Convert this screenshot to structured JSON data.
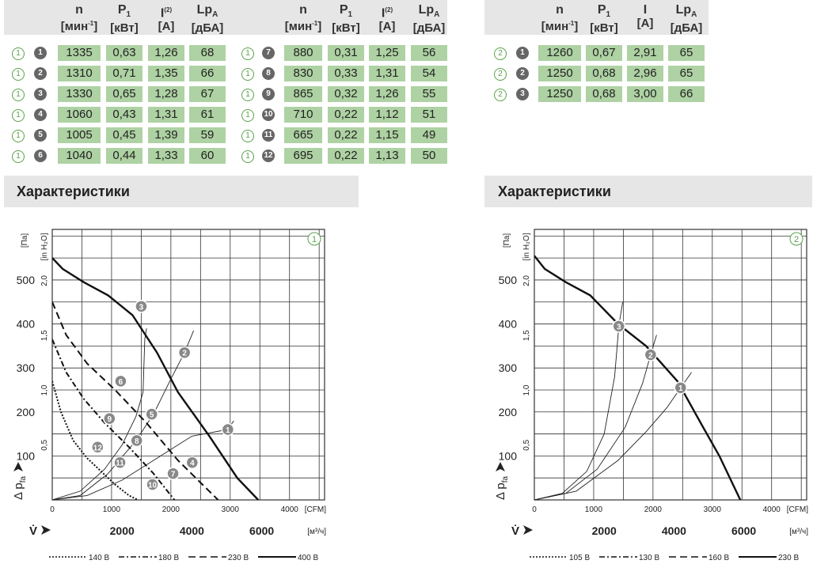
{
  "tables": [
    {
      "curve_marker": "1",
      "headers": {
        "n": {
          "sym": "n",
          "unit": "[мин",
          "unit_sup": "-1",
          "unit_tail": "]"
        },
        "p": {
          "sym": "P",
          "sub": "1",
          "unit": "[кВт]"
        },
        "i": {
          "sym": "I",
          "sup": "(2)",
          "unit": "[A]"
        },
        "lp": {
          "sym": "Lp",
          "sub": "A",
          "unit": "[дБА]"
        }
      },
      "rows": [
        {
          "op": "1",
          "n": "1335",
          "p": "0,63",
          "i": "1,26",
          "lp": "68"
        },
        {
          "op": "2",
          "n": "1310",
          "p": "0,71",
          "i": "1,35",
          "lp": "66"
        },
        {
          "op": "3",
          "n": "1330",
          "p": "0,65",
          "i": "1,28",
          "lp": "67"
        },
        {
          "op": "4",
          "n": "1060",
          "p": "0,43",
          "i": "1,31",
          "lp": "61"
        },
        {
          "op": "5",
          "n": "1005",
          "p": "0,45",
          "i": "1,39",
          "lp": "59"
        },
        {
          "op": "6",
          "n": "1040",
          "p": "0,44",
          "i": "1,33",
          "lp": "60"
        }
      ]
    },
    {
      "curve_marker": "1",
      "headers": {
        "n": {
          "sym": "n",
          "unit": "[мин",
          "unit_sup": "-1",
          "unit_tail": "]"
        },
        "p": {
          "sym": "P",
          "sub": "1",
          "unit": "[кВт]"
        },
        "i": {
          "sym": "I",
          "sup": "(2)",
          "unit": "[A]"
        },
        "lp": {
          "sym": "Lp",
          "sub": "A",
          "unit": "[дБА]"
        }
      },
      "rows": [
        {
          "op": "7",
          "n": "880",
          "p": "0,31",
          "i": "1,25",
          "lp": "56"
        },
        {
          "op": "8",
          "n": "830",
          "p": "0,33",
          "i": "1,31",
          "lp": "54"
        },
        {
          "op": "9",
          "n": "865",
          "p": "0,32",
          "i": "1,26",
          "lp": "55"
        },
        {
          "op": "10",
          "n": "710",
          "p": "0,22",
          "i": "1,12",
          "lp": "51"
        },
        {
          "op": "11",
          "n": "665",
          "p": "0,22",
          "i": "1,15",
          "lp": "49"
        },
        {
          "op": "12",
          "n": "695",
          "p": "0,22",
          "i": "1,13",
          "lp": "50"
        }
      ]
    },
    {
      "curve_marker": "2",
      "headers": {
        "n": {
          "sym": "n",
          "unit": "[мин",
          "unit_sup": "-1",
          "unit_tail": "]"
        },
        "p": {
          "sym": "P",
          "sub": "1",
          "unit": "[кВт]"
        },
        "i": {
          "sym": "I",
          "sup": "",
          "unit": "[A]"
        },
        "lp": {
          "sym": "Lp",
          "sub": "A",
          "unit": "[дБА]"
        }
      },
      "rows": [
        {
          "op": "1",
          "n": "1260",
          "p": "0,67",
          "i": "2,91",
          "lp": "65"
        },
        {
          "op": "2",
          "n": "1250",
          "p": "0,68",
          "i": "2,96",
          "lp": "65"
        },
        {
          "op": "3",
          "n": "1250",
          "p": "0,68",
          "i": "3,00",
          "lp": "66"
        }
      ]
    }
  ],
  "section_titles": [
    "Характеристики",
    "Характеристики"
  ],
  "colors": {
    "cell_green": "#aed2a3",
    "marker_green": "#5aa24a",
    "header_grey": "#e6e6e6",
    "op_grey": "#666666"
  },
  "chart_data": [
    {
      "type": "line",
      "marker": "1",
      "x_unit_m3h": "[м³/ч]",
      "x_unit_cfm": "[CFM]",
      "y_unit_pa": "[Па]",
      "y_unit_inh2o": "[in H₂O]",
      "ylabel": "Δ p",
      "ylabel_sub": "fa",
      "xlabel": "V̇",
      "xlim_m3h": [
        0,
        7800
      ],
      "ylim_pa": [
        0,
        615
      ],
      "x_ticks_m3h": [
        0,
        2000,
        4000,
        6000
      ],
      "x_ticks_cfm": [
        0,
        1000,
        2000,
        3000,
        4000
      ],
      "y_ticks_pa": [
        100,
        200,
        300,
        400,
        500
      ],
      "y_ticks_inh2o": [
        "0,5",
        "1,0",
        "1,5",
        "2,0"
      ],
      "grid": true,
      "series": [
        {
          "name": "140 В",
          "style": "dotted",
          "points": [
            [
              0,
              270
            ],
            [
              250,
              200
            ],
            [
              600,
              135
            ],
            [
              1000,
              95
            ],
            [
              1400,
              65
            ],
            [
              1800,
              35
            ],
            [
              2200,
              10
            ],
            [
              2450,
              0
            ]
          ]
        },
        {
          "name": "180 В",
          "style": "dashdot",
          "points": [
            [
              0,
              365
            ],
            [
              400,
              290
            ],
            [
              900,
              230
            ],
            [
              1500,
              175
            ],
            [
              2200,
              120
            ],
            [
              2900,
              60
            ],
            [
              3500,
              0
            ]
          ]
        },
        {
          "name": "230 В",
          "style": "dashed",
          "points": [
            [
              0,
              450
            ],
            [
              400,
              375
            ],
            [
              1000,
              310
            ],
            [
              1800,
              250
            ],
            [
              2700,
              175
            ],
            [
              3600,
              90
            ],
            [
              4750,
              0
            ]
          ]
        },
        {
          "name": "400 В",
          "style": "solid",
          "points": [
            [
              0,
              550
            ],
            [
              300,
              525
            ],
            [
              900,
              495
            ],
            [
              1600,
              465
            ],
            [
              2300,
              420
            ],
            [
              3000,
              335
            ],
            [
              3600,
              245
            ],
            [
              4500,
              145
            ],
            [
              5300,
              50
            ],
            [
              5900,
              0
            ]
          ]
        }
      ],
      "operating_points": [
        {
          "id": "1",
          "x": 5030,
          "y": 160
        },
        {
          "id": "2",
          "x": 3790,
          "y": 335
        },
        {
          "id": "3",
          "x": 2550,
          "y": 440
        },
        {
          "id": "4",
          "x": 4010,
          "y": 85
        },
        {
          "id": "5",
          "x": 2850,
          "y": 195
        },
        {
          "id": "6",
          "x": 1960,
          "y": 270
        },
        {
          "id": "7",
          "x": 3460,
          "y": 60
        },
        {
          "id": "8",
          "x": 2420,
          "y": 135
        },
        {
          "id": "9",
          "x": 1640,
          "y": 185
        },
        {
          "id": "10",
          "x": 2870,
          "y": 35
        },
        {
          "id": "11",
          "x": 1940,
          "y": 85
        },
        {
          "id": "12",
          "x": 1300,
          "y": 120
        }
      ],
      "system_curves": [
        {
          "points": [
            [
              0,
              0
            ],
            [
              800,
              20
            ],
            [
              1500,
              70
            ],
            [
              2000,
              125
            ],
            [
              2400,
              190
            ],
            [
              2600,
              245
            ],
            [
              2650,
              365
            ],
            [
              2700,
              390
            ]
          ]
        },
        {
          "points": [
            [
              0,
              0
            ],
            [
              800,
              10
            ],
            [
              1600,
              60
            ],
            [
              2400,
              135
            ],
            [
              2900,
              195
            ],
            [
              3400,
              275
            ],
            [
              3790,
              335
            ],
            [
              4050,
              385
            ]
          ]
        },
        {
          "points": [
            [
              0,
              0
            ],
            [
              1000,
              10
            ],
            [
              2000,
              45
            ],
            [
              3000,
              95
            ],
            [
              4000,
              145
            ],
            [
              5030,
              160
            ],
            [
              5200,
              180
            ]
          ]
        }
      ],
      "legend_position": "bottom"
    },
    {
      "type": "line",
      "marker": "2",
      "x_unit_m3h": "[м³/ч]",
      "x_unit_cfm": "[CFM]",
      "y_unit_pa": "[Па]",
      "y_unit_inh2o": "[in H₂O]",
      "ylabel": "Δ p",
      "ylabel_sub": "fa",
      "xlabel": "V̇",
      "xlim_m3h": [
        0,
        7800
      ],
      "ylim_pa": [
        0,
        615
      ],
      "x_ticks_m3h": [
        0,
        2000,
        4000,
        6000
      ],
      "x_ticks_cfm": [
        0,
        1000,
        2000,
        3000,
        4000
      ],
      "y_ticks_pa": [
        100,
        200,
        300,
        400,
        500
      ],
      "y_ticks_inh2o": [
        "0,5",
        "1,0",
        "1,5",
        "2,0"
      ],
      "grid": true,
      "series": [
        {
          "name": "105 В",
          "style": "dotted",
          "points": []
        },
        {
          "name": "130 В",
          "style": "dashdot",
          "points": []
        },
        {
          "name": "160 В",
          "style": "dashed",
          "points": []
        },
        {
          "name": "230 В",
          "style": "solid",
          "points": [
            [
              0,
              555
            ],
            [
              300,
              525
            ],
            [
              900,
              495
            ],
            [
              1600,
              465
            ],
            [
              2400,
              400
            ],
            [
              3200,
              350
            ],
            [
              4100,
              270
            ],
            [
              4800,
              170
            ],
            [
              5300,
              100
            ],
            [
              5900,
              0
            ]
          ]
        }
      ],
      "operating_points": [
        {
          "id": "1",
          "x": 4190,
          "y": 255
        },
        {
          "id": "2",
          "x": 3330,
          "y": 330
        },
        {
          "id": "3",
          "x": 2420,
          "y": 395
        }
      ],
      "system_curves": [
        {
          "points": [
            [
              0,
              0
            ],
            [
              800,
              15
            ],
            [
              1500,
              65
            ],
            [
              2000,
              150
            ],
            [
              2300,
              280
            ],
            [
              2420,
              395
            ],
            [
              2530,
              450
            ]
          ]
        },
        {
          "points": [
            [
              0,
              0
            ],
            [
              900,
              15
            ],
            [
              1800,
              70
            ],
            [
              2600,
              165
            ],
            [
              3100,
              265
            ],
            [
              3330,
              330
            ],
            [
              3500,
              375
            ]
          ]
        },
        {
          "points": [
            [
              0,
              0
            ],
            [
              1200,
              20
            ],
            [
              2400,
              90
            ],
            [
              3200,
              155
            ],
            [
              3800,
              210
            ],
            [
              4190,
              255
            ],
            [
              4500,
              290
            ]
          ]
        }
      ],
      "legend_position": "bottom"
    }
  ]
}
